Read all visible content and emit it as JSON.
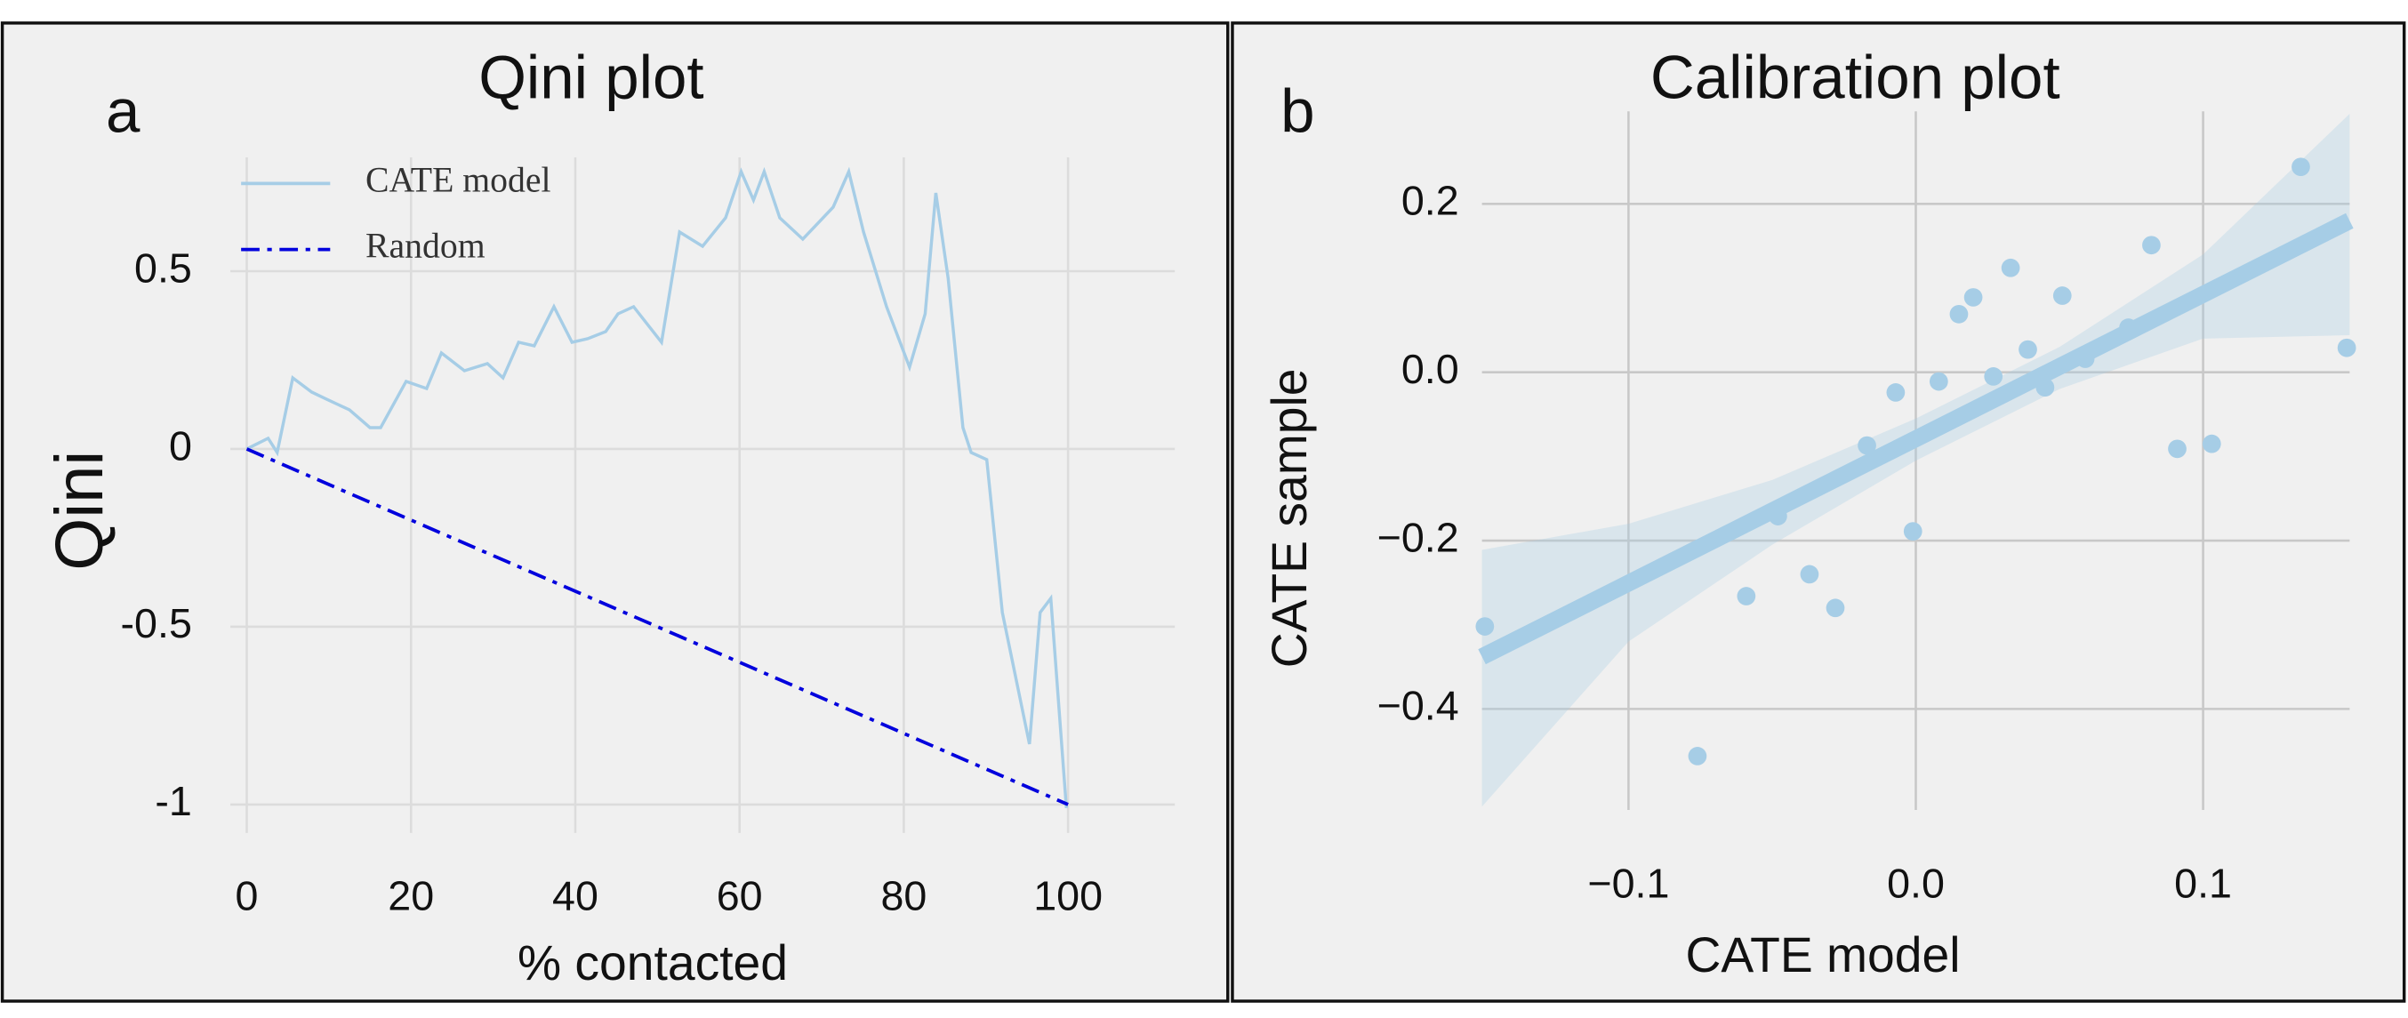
{
  "chart_data": [
    {
      "type": "line",
      "panel": "a",
      "title": "Qini plot",
      "xlabel": "% contacted",
      "ylabel": "Qini",
      "xlim": [
        -2,
        113
      ],
      "ylim": [
        -1.08,
        0.82
      ],
      "xticks": [
        0,
        20,
        40,
        60,
        80,
        100
      ],
      "yticks": [
        -1,
        -0.5,
        0,
        0.5
      ],
      "grid": true,
      "legend": "upper left",
      "series": [
        {
          "name": "CATE model",
          "color": "#a6cde6",
          "style": "solid",
          "x": [
            0,
            2.6,
            3.7,
            5.6,
            7.9,
            9.7,
            12.5,
            15,
            16.3,
            19.4,
            21.9,
            23.7,
            26.5,
            29.3,
            31.2,
            33.1,
            35,
            37.4,
            39.6,
            41.5,
            43.7,
            45.2,
            47.1,
            50.5,
            52.7,
            55.5,
            58.3,
            60.2,
            61.7,
            63,
            64.9,
            67.7,
            71.4,
            73.3,
            75.1,
            77.9,
            80.7,
            82.6,
            83.9,
            85.4,
            87.2,
            88.2,
            90.1,
            92,
            95.3,
            96.6,
            97.9,
            99.8
          ],
          "values": [
            0,
            0.03,
            -0.01,
            0.2,
            0.16,
            0.14,
            0.11,
            0.06,
            0.06,
            0.19,
            0.17,
            0.27,
            0.22,
            0.24,
            0.2,
            0.3,
            0.29,
            0.4,
            0.3,
            0.31,
            0.33,
            0.38,
            0.4,
            0.3,
            0.61,
            0.57,
            0.65,
            0.78,
            0.7,
            0.78,
            0.65,
            0.59,
            0.68,
            0.78,
            0.61,
            0.4,
            0.23,
            0.38,
            0.72,
            0.48,
            0.06,
            -0.01,
            -0.03,
            -0.46,
            -0.83,
            -0.46,
            -0.42,
            -1.01
          ]
        },
        {
          "name": "Random",
          "color": "#0000dd",
          "style": "dashdot",
          "x": [
            0,
            100
          ],
          "values": [
            0,
            -1
          ]
        }
      ]
    },
    {
      "type": "scatter",
      "panel": "b",
      "title": "Calibration  plot",
      "xlabel": "CATE model",
      "ylabel": "CATE sample",
      "xlim": [
        -0.151,
        0.151
      ],
      "ylim": [
        -0.52,
        0.31
      ],
      "xticks": [
        {
          "value": -0.1,
          "label": "−0.1"
        },
        {
          "value": 0,
          "label": "0.0"
        },
        0.1
      ],
      "yticks": [
        {
          "value": -0.4,
          "label": "−0.4"
        },
        {
          "value": -0.2,
          "label": "−0.2"
        },
        {
          "value": 0,
          "label": "0.0"
        },
        0.2
      ],
      "grid": true,
      "color": "#a6cde6",
      "x": [
        -0.15,
        -0.076,
        -0.059,
        -0.048,
        -0.037,
        -0.028,
        -0.017,
        -0.007,
        -0.001,
        0.008,
        0.015,
        0.02,
        0.027,
        0.033,
        0.039,
        0.045,
        0.051,
        0.059,
        0.074,
        0.082,
        0.091,
        0.103,
        0.134,
        0.15
      ],
      "values": [
        -0.302,
        -0.456,
        -0.266,
        -0.171,
        -0.24,
        -0.28,
        -0.087,
        -0.024,
        -0.189,
        -0.011,
        0.069,
        0.089,
        -0.005,
        0.124,
        0.027,
        -0.018,
        0.091,
        0.016,
        0.053,
        0.151,
        -0.091,
        -0.085,
        0.244,
        0.029
      ],
      "regression": {
        "x": [
          -0.151,
          0.151
        ],
        "values": [
          -0.338,
          0.18
        ]
      },
      "band": {
        "x": [
          -0.151,
          -0.1,
          -0.05,
          0,
          0.05,
          0.1,
          0.151
        ],
        "lower": [
          -0.516,
          -0.32,
          -0.205,
          -0.105,
          -0.02,
          0.04,
          0.044
        ],
        "upper": [
          -0.211,
          -0.18,
          -0.128,
          -0.055,
          0.03,
          0.14,
          0.307
        ]
      }
    }
  ]
}
